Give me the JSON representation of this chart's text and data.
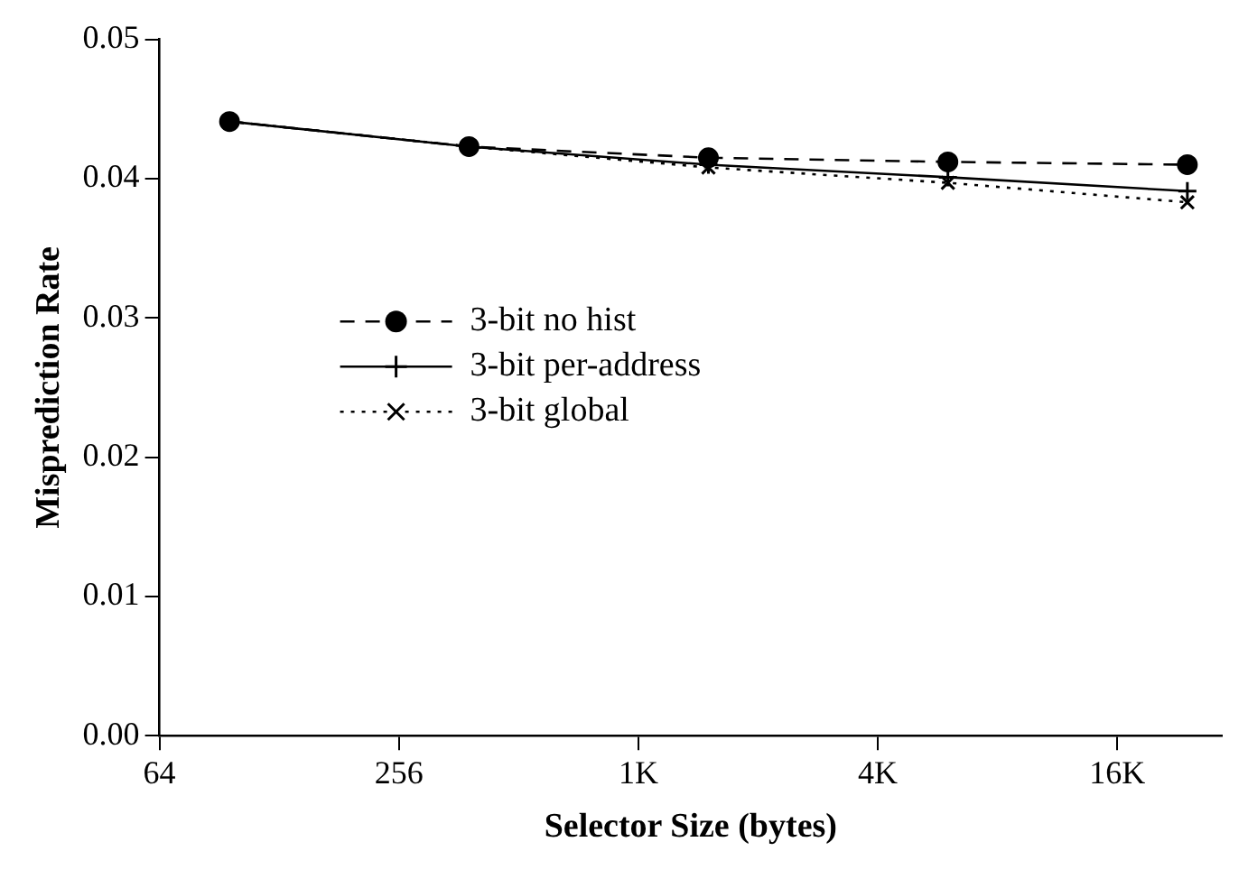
{
  "chart_data": {
    "type": "line",
    "xlabel": "Selector Size (bytes)",
    "ylabel": "Misprediction Rate",
    "x": [
      96,
      384,
      1536,
      6144,
      24576
    ],
    "series": [
      {
        "name": "3-bit no hist",
        "color": "#000000",
        "marker": "circle",
        "line_style": "dashed",
        "values": [
          0.0441,
          0.0423,
          0.0415,
          0.0412,
          0.041
        ]
      },
      {
        "name": "3-bit per-address",
        "color": "#000000",
        "marker": "cross",
        "line_style": "solid",
        "values": [
          0.0441,
          0.0423,
          0.041,
          0.0401,
          0.0391
        ]
      },
      {
        "name": "3-bit global",
        "color": "#000000",
        "marker": "x",
        "line_style": "dotted",
        "values": [
          0.0441,
          0.0423,
          0.0408,
          0.0397,
          0.0383
        ]
      }
    ],
    "log": "x",
    "xlim": [
      64,
      30000
    ],
    "xticks": [
      64,
      256,
      {
        "value": 1024,
        "label": "1K"
      },
      {
        "value": 4096,
        "label": "4K"
      },
      {
        "value": 16384,
        "label": "16K"
      }
    ],
    "ylim": [
      0,
      0.05
    ],
    "yticks": [
      {
        "value": 0,
        "label": "0.00"
      },
      0.01,
      0.02,
      0.03,
      0.04,
      0.05
    ],
    "grid": false,
    "legend": "left"
  }
}
